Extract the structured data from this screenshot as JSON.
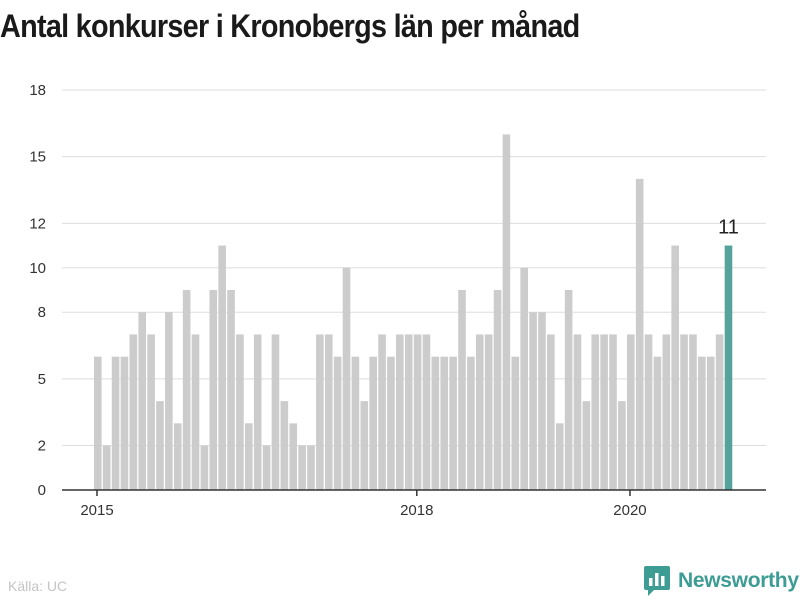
{
  "colors": {
    "bar": "#cccccc",
    "highlight": "#55a39a",
    "grid": "#dddddd",
    "axis": "#333333",
    "brand": "#3d9c94"
  },
  "source": "Källa: UC",
  "brand": {
    "name": "Newsworthy",
    "icon": "bar-chart-logo-icon"
  },
  "chart_data": {
    "type": "bar",
    "title": "Antal konkurser i Kronobergs län per månad",
    "xlabel": "",
    "ylabel": "",
    "ylim": [
      0,
      18
    ],
    "yticks": [
      "0",
      "2",
      "5",
      "8",
      "10",
      "12",
      "15",
      "18"
    ],
    "xticks": [
      "2015",
      "2018",
      "2020"
    ],
    "highlight_label": "11",
    "grid": true,
    "legend": "none",
    "x": [
      "2015-01",
      "2015-02",
      "2015-03",
      "2015-04",
      "2015-05",
      "2015-06",
      "2015-07",
      "2015-08",
      "2015-09",
      "2015-10",
      "2015-11",
      "2015-12",
      "2016-01",
      "2016-02",
      "2016-03",
      "2016-04",
      "2016-05",
      "2016-06",
      "2016-07",
      "2016-08",
      "2016-09",
      "2016-10",
      "2016-11",
      "2016-12",
      "2017-01",
      "2017-02",
      "2017-03",
      "2017-04",
      "2017-05",
      "2017-06",
      "2017-07",
      "2017-08",
      "2017-09",
      "2017-10",
      "2017-11",
      "2017-12",
      "2018-01",
      "2018-02",
      "2018-03",
      "2018-04",
      "2018-05",
      "2018-06",
      "2018-07",
      "2018-08",
      "2018-09",
      "2018-10",
      "2018-11",
      "2018-12",
      "2019-01",
      "2019-02",
      "2019-03",
      "2019-04",
      "2019-05",
      "2019-06",
      "2019-07",
      "2019-08",
      "2019-09",
      "2019-10",
      "2019-11",
      "2019-12",
      "2020-01",
      "2020-02",
      "2020-03",
      "2020-04",
      "2020-05",
      "2020-06",
      "2020-07",
      "2020-08",
      "2020-09",
      "2020-10",
      "2020-11",
      "2020-12"
    ],
    "values": [
      6,
      2,
      6,
      6,
      7,
      8,
      7,
      4,
      8,
      3,
      9,
      7,
      2,
      9,
      11,
      9,
      7,
      3,
      7,
      2,
      7,
      4,
      3,
      2,
      2,
      7,
      7,
      6,
      10,
      6,
      4,
      6,
      7,
      6,
      7,
      7,
      7,
      7,
      6,
      6,
      6,
      9,
      6,
      7,
      7,
      9,
      16,
      6,
      10,
      8,
      8,
      7,
      3,
      9,
      7,
      4,
      7,
      7,
      7,
      4,
      7,
      14,
      7,
      6,
      7,
      11,
      7,
      7,
      6,
      6,
      7,
      11
    ]
  }
}
